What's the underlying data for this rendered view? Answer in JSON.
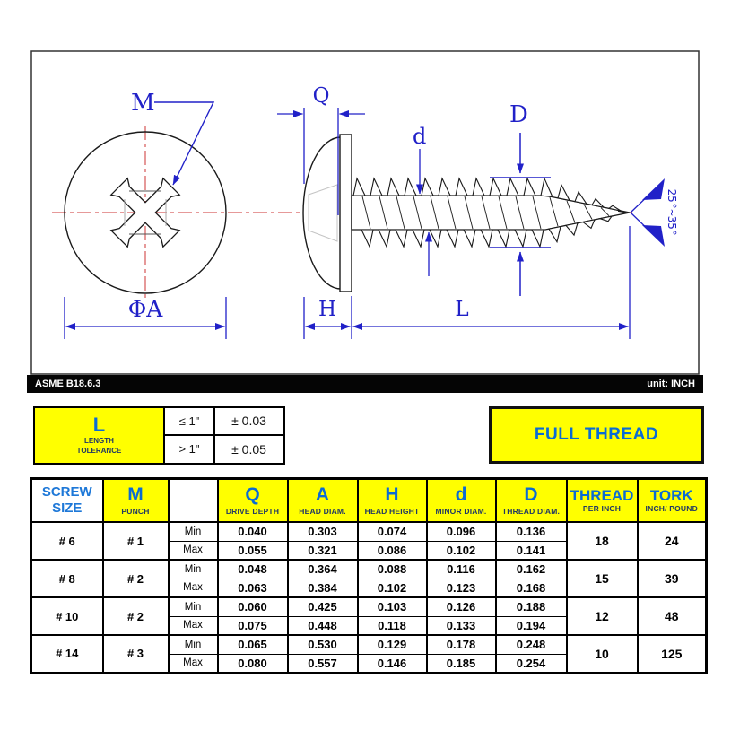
{
  "drawing": {
    "standard": "ASME B18.6.3",
    "unit_note": "unit: INCH",
    "dim_labels": {
      "m": "M",
      "q": "Q",
      "phi_a": "ΦA",
      "h": "H",
      "l": "L",
      "d_minor": "d",
      "d_major": "D",
      "point_angle": "25°~35°"
    }
  },
  "tolerance_box": {
    "symbol": "L",
    "caption": [
      "LENGTH",
      "TOLERANCE"
    ],
    "rows": [
      [
        "≤ 1\"",
        "± 0.03"
      ],
      [
        "> 1\"",
        "± 0.05"
      ]
    ]
  },
  "full_thread": "FULL THREAD",
  "table": {
    "headers": [
      [
        "SCREW",
        "SIZE"
      ],
      [
        "M",
        "PUNCH"
      ],
      [
        "",
        ""
      ],
      [
        "Q",
        "DRIVE DEPTH"
      ],
      [
        "A",
        "HEAD DIAM."
      ],
      [
        "H",
        "HEAD HEIGHT"
      ],
      [
        "d",
        "MINOR DIAM."
      ],
      [
        "D",
        "THREAD DIAM."
      ],
      [
        "THREAD",
        "PER INCH"
      ],
      [
        "TORK",
        "INCH/ POUND"
      ]
    ],
    "row_labels": [
      "Min",
      "Max"
    ],
    "rows": [
      {
        "size": "# 6",
        "punch": "# 1",
        "min": [
          "0.040",
          "0.303",
          "0.074",
          "0.096",
          "0.136"
        ],
        "max": [
          "0.055",
          "0.321",
          "0.086",
          "0.102",
          "0.141"
        ],
        "thread": "18",
        "tork": "24"
      },
      {
        "size": "# 8",
        "punch": "# 2",
        "min": [
          "0.048",
          "0.364",
          "0.088",
          "0.116",
          "0.162"
        ],
        "max": [
          "0.063",
          "0.384",
          "0.102",
          "0.123",
          "0.168"
        ],
        "thread": "15",
        "tork": "39"
      },
      {
        "size": "# 10",
        "punch": "# 2",
        "min": [
          "0.060",
          "0.425",
          "0.103",
          "0.126",
          "0.188"
        ],
        "max": [
          "0.075",
          "0.448",
          "0.118",
          "0.133",
          "0.194"
        ],
        "thread": "12",
        "tork": "48"
      },
      {
        "size": "# 14",
        "punch": "# 3",
        "min": [
          "0.065",
          "0.530",
          "0.129",
          "0.178",
          "0.248"
        ],
        "max": [
          "0.080",
          "0.557",
          "0.146",
          "0.185",
          "0.254"
        ],
        "thread": "10",
        "tork": "125"
      }
    ]
  },
  "colors": {
    "accent_blue": "#0b6bd4",
    "navy": "#203864",
    "dimension_blue": "#2121c8",
    "centerline_red": "#cc3333",
    "highlight_yellow": "#ffff00"
  }
}
